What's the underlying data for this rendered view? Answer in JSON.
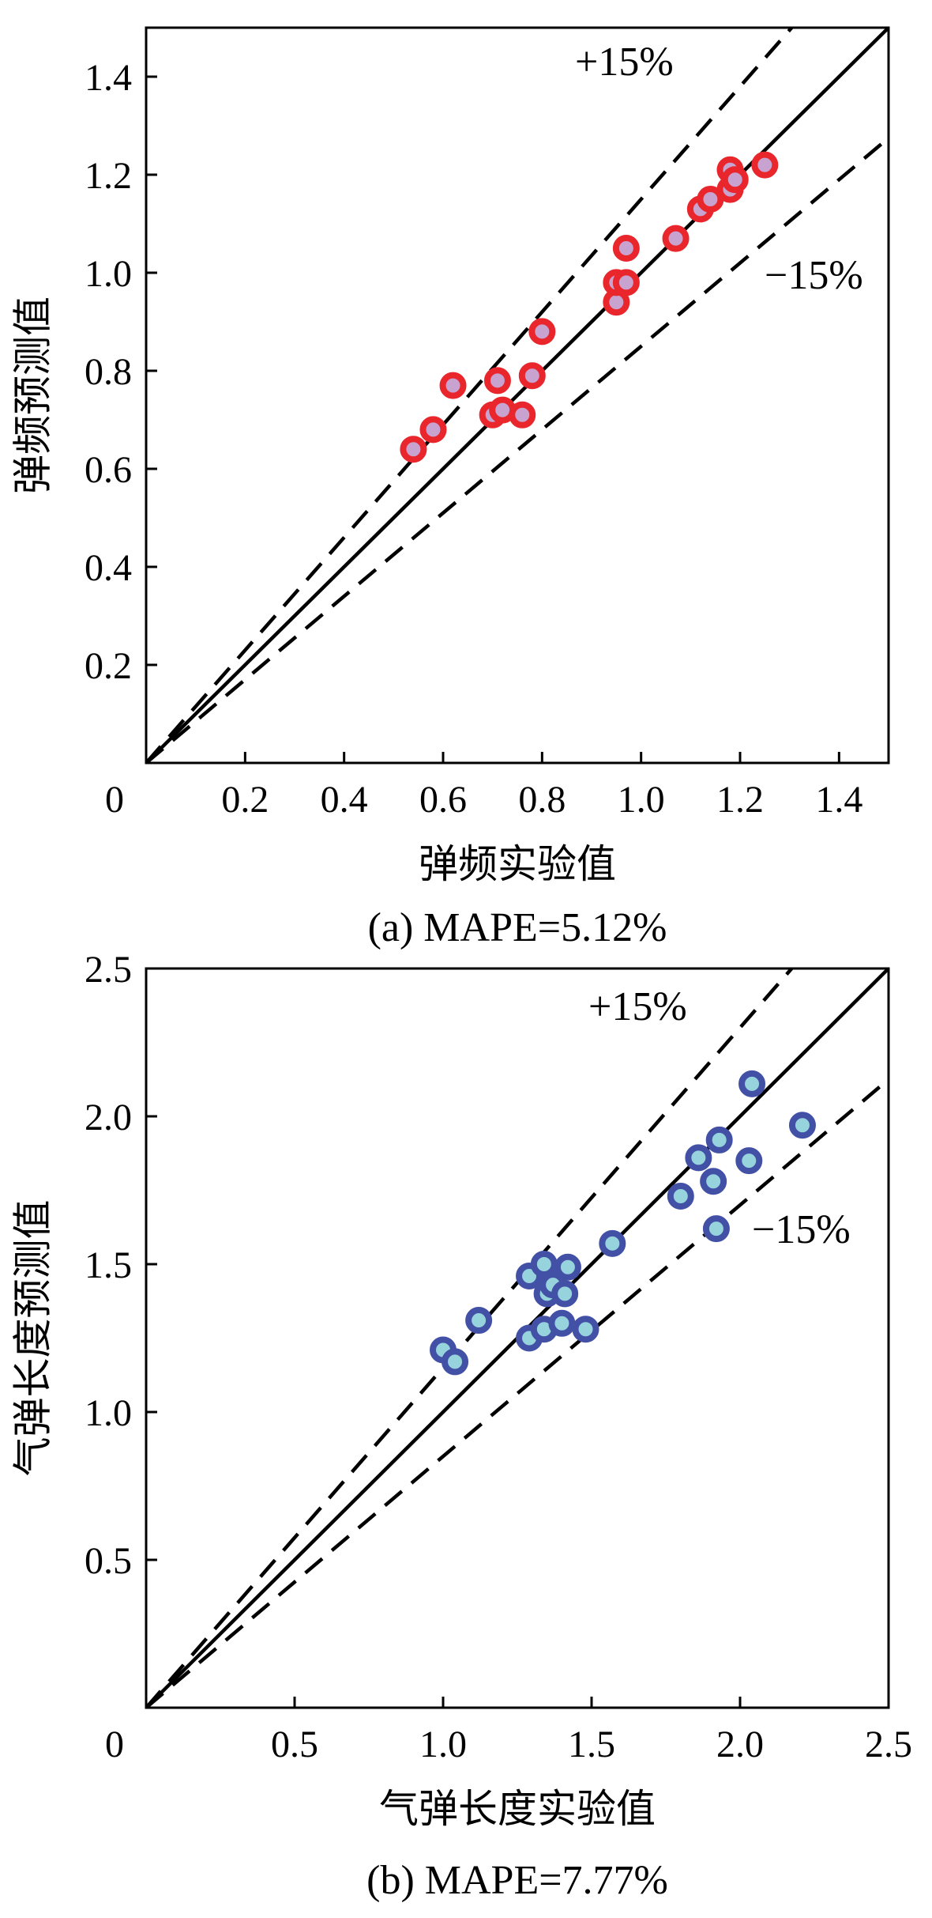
{
  "chart_data": [
    {
      "type": "scatter",
      "caption": "(a) MAPE=5.12%",
      "xlabel": "弹频实验值",
      "ylabel": "弹频预测值",
      "xlim": [
        0,
        1.5
      ],
      "ylim": [
        0,
        1.5
      ],
      "x_ticks": [
        "0.2",
        "0.4",
        "0.6",
        "0.8",
        "1.0",
        "1.2",
        "1.4"
      ],
      "y_ticks": [
        "0.2",
        "0.4",
        "0.6",
        "0.8",
        "1.0",
        "1.2",
        "1.4"
      ],
      "origin_label": "0",
      "upper_band_label": "+15%",
      "lower_band_label": "−15%",
      "upper_band_factor": 1.15,
      "lower_band_factor": 0.85,
      "marker_fill": "#c9a3cf",
      "marker_edge": "#e8262c",
      "points": {
        "x": [
          0.54,
          0.58,
          0.62,
          0.7,
          0.72,
          0.71,
          0.76,
          0.78,
          0.8,
          0.95,
          0.95,
          0.97,
          0.97,
          1.07,
          1.12,
          1.14,
          1.18,
          1.18,
          1.19,
          1.25
        ],
        "y": [
          0.64,
          0.68,
          0.77,
          0.71,
          0.72,
          0.78,
          0.71,
          0.79,
          0.88,
          0.94,
          0.98,
          1.05,
          0.98,
          1.07,
          1.13,
          1.15,
          1.21,
          1.17,
          1.19,
          1.22
        ]
      }
    },
    {
      "type": "scatter",
      "caption": "(b) MAPE=7.77%",
      "xlabel": "气弹长度实验值",
      "ylabel": "气弹长度预测值",
      "xlim": [
        0,
        2.5
      ],
      "ylim": [
        0,
        2.5
      ],
      "x_ticks": [
        "0.5",
        "1.0",
        "1.5",
        "2.0",
        "2.5"
      ],
      "y_ticks": [
        "0.5",
        "1.0",
        "1.5",
        "2.0",
        "2.5"
      ],
      "origin_label": "0",
      "upper_band_label": "+15%",
      "lower_band_label": "−15%",
      "upper_band_factor": 1.15,
      "lower_band_factor": 0.85,
      "marker_fill": "#96d3dd",
      "marker_edge": "#4250a6",
      "points": {
        "x": [
          1.0,
          1.04,
          1.12,
          1.29,
          1.29,
          1.34,
          1.34,
          1.35,
          1.37,
          1.4,
          1.41,
          1.42,
          1.48,
          1.57,
          1.8,
          1.86,
          1.91,
          1.92,
          1.93,
          2.03,
          2.04,
          2.21
        ],
        "y": [
          1.21,
          1.17,
          1.31,
          1.46,
          1.25,
          1.5,
          1.28,
          1.4,
          1.43,
          1.3,
          1.4,
          1.49,
          1.28,
          1.57,
          1.73,
          1.86,
          1.78,
          1.62,
          1.92,
          1.85,
          2.11,
          1.97
        ]
      }
    }
  ]
}
